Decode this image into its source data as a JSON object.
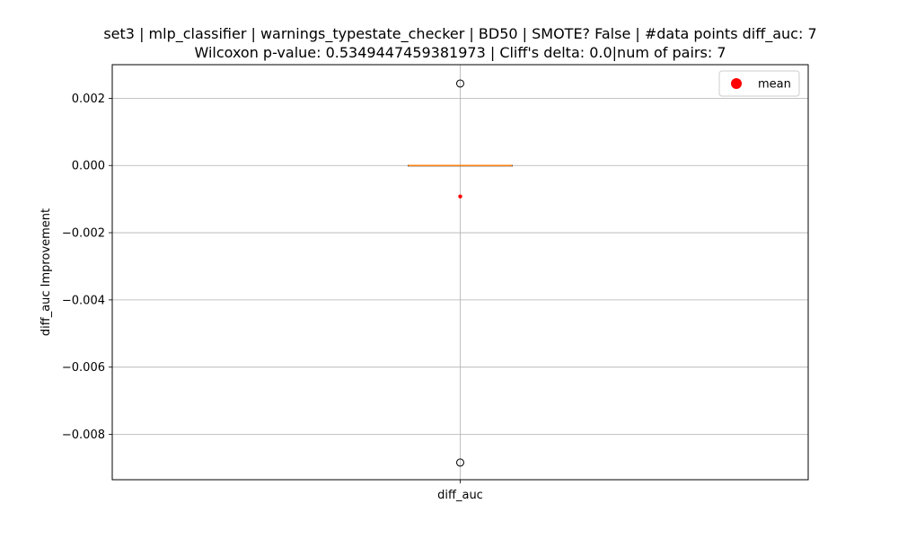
{
  "chart_data": {
    "type": "box",
    "title": "set3 | mlp_classifier | warnings_typestate_checker | BD50 | SMOTE? False | #data points diff_auc: 7",
    "subtitle": "Wilcoxon p-value: 0.5349447459381973 | Cliff's delta: 0.0|num of pairs: 7",
    "xlabel": "",
    "ylabel": "diff_auc Improvement",
    "ylim": [
      -0.00935,
      0.003
    ],
    "yticks": [
      0.002,
      0.0,
      -0.002,
      -0.004,
      -0.006,
      -0.008
    ],
    "ytick_labels": [
      "0.002",
      "0.000",
      "−0.002",
      "−0.004",
      "−0.006",
      "−0.008"
    ],
    "categories": [
      "diff_auc"
    ],
    "boxes": [
      {
        "name": "diff_auc",
        "q1": 0.0,
        "median": 0.0,
        "q3": 0.0,
        "whisker_low": 0.0,
        "whisker_high": 0.0,
        "mean": -0.00092,
        "outliers": [
          0.00244,
          -0.00884
        ]
      }
    ],
    "legend": {
      "position": "top-right",
      "entries": [
        {
          "label": "mean",
          "color": "#ff0000"
        }
      ]
    },
    "grid": true,
    "colors": {
      "median": "#ff7f0e",
      "mean": "#ff0000",
      "grid": "#b0b0b0",
      "box": "#000000"
    }
  }
}
